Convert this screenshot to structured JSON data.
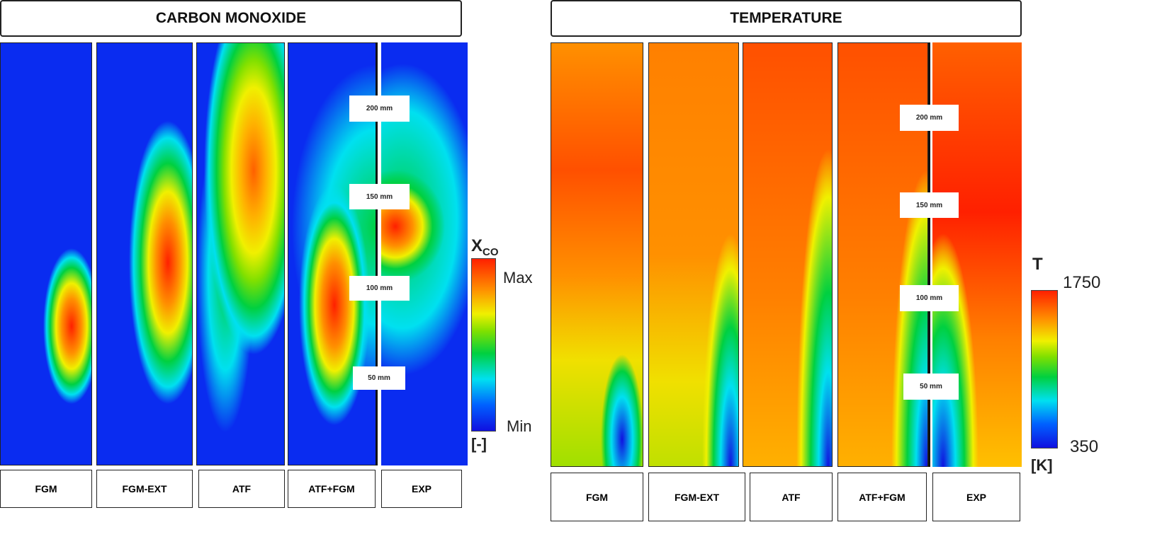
{
  "co": {
    "title": "CARBON MONOXIDE",
    "panels": [
      "FGM",
      "FGM-EXT",
      "ATF",
      "ATF+FGM",
      "EXP"
    ],
    "scale_marks": [
      "200 mm",
      "150 mm",
      "100 mm",
      "50 mm"
    ],
    "colorbar": {
      "symbol": "X",
      "subscript": "CO",
      "max": "Max",
      "min": "Min",
      "unit": "[-]"
    }
  },
  "temp": {
    "title": "TEMPERATURE",
    "panels": [
      "FGM",
      "FGM-EXT",
      "ATF",
      "ATF+FGM",
      "EXP"
    ],
    "scale_marks": [
      "200 mm",
      "150 mm",
      "100 mm",
      "50 mm"
    ],
    "colorbar": {
      "symbol": "T",
      "max": "1750",
      "min": "350",
      "unit": "[K]"
    }
  },
  "colors": {
    "min": "#1010e0",
    "max": "#ff2000"
  }
}
